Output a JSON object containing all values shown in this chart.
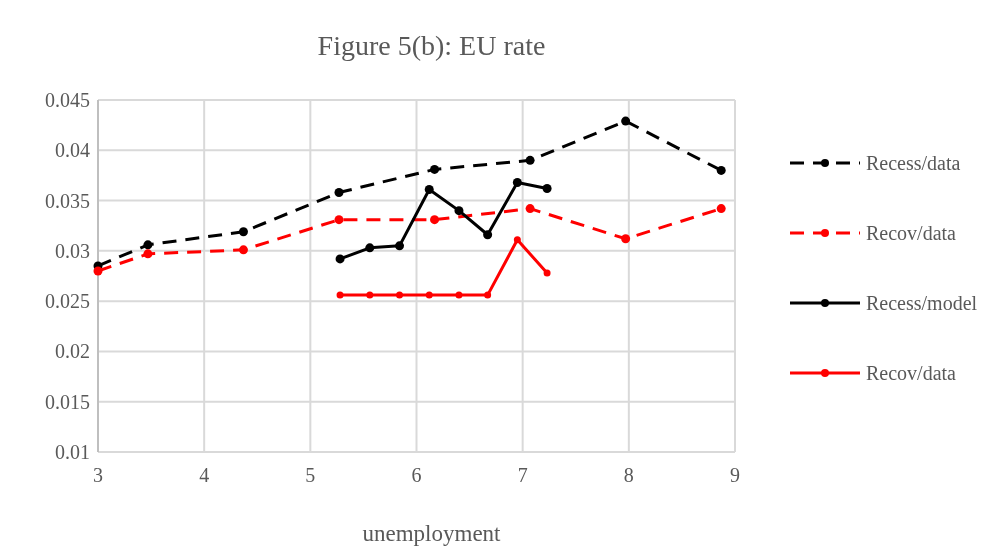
{
  "chart_data": {
    "type": "line",
    "title": "Figure 5(b): EU rate",
    "xlabel": "unemployment",
    "xlim": [
      3,
      9
    ],
    "xticks": [
      3,
      4,
      5,
      6,
      7,
      8,
      9
    ],
    "ylim": [
      0.01,
      0.045
    ],
    "yticks": [
      0.01,
      0.015,
      0.02,
      0.025,
      0.03,
      0.035,
      0.04,
      0.045
    ],
    "grid": true,
    "legend": "right",
    "marker": "circle",
    "series": [
      {
        "name": "Recess/data",
        "color": "#000000",
        "line_style": "dashed",
        "x": [
          3.0,
          3.47,
          4.37,
          5.27,
          6.17,
          7.07,
          7.97,
          8.87
        ],
        "values": [
          0.0285,
          0.0306,
          0.0319,
          0.0358,
          0.0381,
          0.039,
          0.0429,
          0.038
        ]
      },
      {
        "name": "Recov/data",
        "color": "#ff0000",
        "line_style": "dashed",
        "x": [
          3.0,
          3.47,
          4.37,
          5.27,
          6.17,
          7.07,
          7.97,
          8.87
        ],
        "values": [
          0.028,
          0.0297,
          0.0301,
          0.0331,
          0.0331,
          0.0342,
          0.0312,
          0.0342
        ]
      },
      {
        "name": "Recess/model",
        "color": "#000000",
        "line_style": "solid",
        "x": [
          5.28,
          5.56,
          5.84,
          6.12,
          6.4,
          6.67,
          6.95,
          7.23
        ],
        "values": [
          0.0292,
          0.0303,
          0.0305,
          0.0361,
          0.034,
          0.0316,
          0.0368,
          0.0362
        ]
      },
      {
        "name": "Recov/data",
        "color": "#ff0000",
        "line_style": "solid",
        "x": [
          5.28,
          5.56,
          5.84,
          6.12,
          6.4,
          6.67,
          6.95,
          7.23
        ],
        "values": [
          0.0256,
          0.0256,
          0.0256,
          0.0256,
          0.0256,
          0.0256,
          0.0311,
          0.0278
        ]
      }
    ]
  }
}
